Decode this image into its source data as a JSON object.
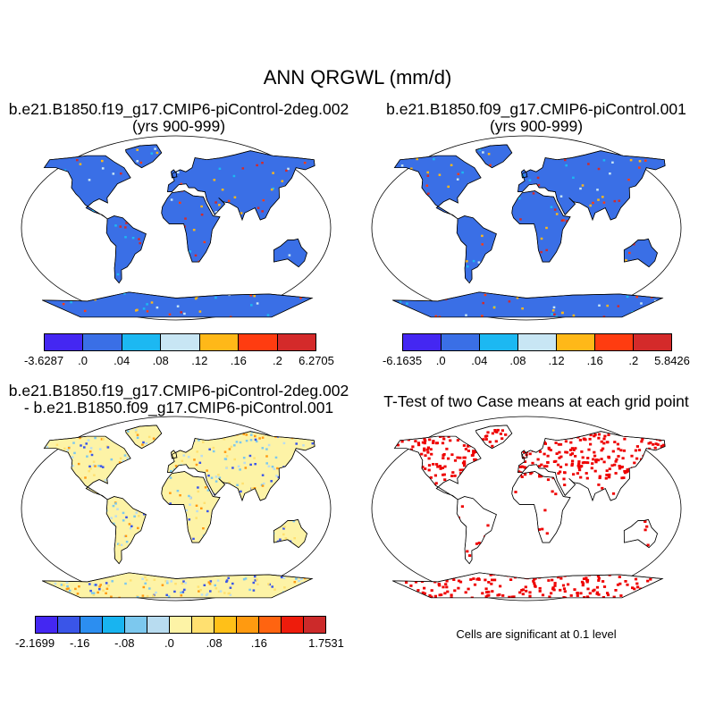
{
  "main_title": "ANN QRGWL (mm/d)",
  "panels": [
    {
      "id": "case1",
      "title_line1": "b.e21.B1850.f19_g17.CMIP6-piControl-2deg.002",
      "title_line2": "(yrs 900-999)",
      "dominant_land_color": "#3a6fe6",
      "colorbar": {
        "colors": [
          "#4427f2",
          "#3a6fe6",
          "#1cb8f2",
          "#c8e6f4",
          "#ffb818",
          "#ff3c10",
          "#d42a2a"
        ],
        "tick_labels": [
          "-3.6287",
          ".0",
          ".04",
          ".08",
          ".12",
          ".16",
          ".2",
          "6.2705"
        ]
      }
    },
    {
      "id": "case2",
      "title_line1": "b.e21.B1850.f09_g17.CMIP6-piControl.001",
      "title_line2": "(yrs 900-999)",
      "dominant_land_color": "#3a6fe6",
      "colorbar": {
        "colors": [
          "#4427f2",
          "#3a6fe6",
          "#1cb8f2",
          "#c8e6f4",
          "#ffb818",
          "#ff3c10",
          "#d42a2a"
        ],
        "tick_labels": [
          "-6.1635",
          ".0",
          ".04",
          ".08",
          ".12",
          ".16",
          ".2",
          "5.8426"
        ]
      }
    },
    {
      "id": "difference",
      "title_line1": "b.e21.B1850.f19_g17.CMIP6-piControl-2deg.002",
      "title_line2": "- b.e21.B1850.f09_g17.CMIP6-piControl.001",
      "dominant_land_color": "#fdf3a6",
      "colorbar": {
        "colors": [
          "#4427f2",
          "#3a55e8",
          "#2c8ef0",
          "#18b4f0",
          "#7cc8ee",
          "#b8dcf0",
          "#fdf3a6",
          "#ffe070",
          "#ffc018",
          "#ff9a10",
          "#ff6410",
          "#ee1c0c",
          "#cc2a2a"
        ],
        "tick_labels": [
          "-2.1699",
          "-.16",
          "-.08",
          ".0",
          ".08",
          ".16",
          "1.7531"
        ]
      }
    },
    {
      "id": "ttest",
      "title_line1": "T-Test of two Case means at each grid point",
      "dominant_land_color": "#ee0000",
      "footnote": "Cells are significant at 0.1 level"
    }
  ]
}
